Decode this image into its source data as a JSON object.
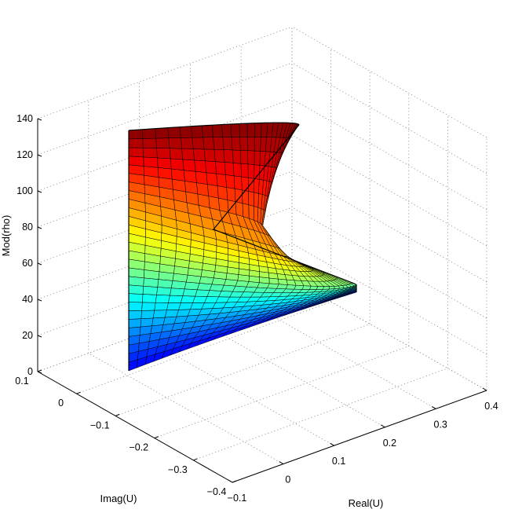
{
  "chart_data": {
    "type": "surface3d",
    "title": "",
    "xlabel": "Real(U)",
    "ylabel": "Imag(U)",
    "zlabel": "Mod(rho)",
    "xlim": [
      -0.1,
      0.4
    ],
    "ylim": [
      -0.4,
      0.1
    ],
    "zlim": [
      0,
      140
    ],
    "x_ticks": [
      "−0.1",
      "0",
      "0.1",
      "0.2",
      "0.3",
      "0.4"
    ],
    "y_ticks": [
      "−0.4",
      "−0.3",
      "−0.2",
      "−0.1",
      "0",
      "0.1"
    ],
    "z_ticks": [
      "0",
      "20",
      "40",
      "60",
      "80",
      "100",
      "120",
      "140"
    ],
    "grid": true,
    "box": false,
    "colormap": "jet",
    "mesh_rows": 28,
    "mesh_cols": 26,
    "edge_color": "#000000",
    "surface_description_points": [
      {
        "x": 0.0,
        "y": 0.1,
        "z": 0
      },
      {
        "x": 0.0,
        "y": 0.1,
        "z": 128
      },
      {
        "x": 0.25,
        "y": 0.0,
        "z": 128
      },
      {
        "x": 0.3,
        "y": -0.2,
        "z": 40
      },
      {
        "x": 0.22,
        "y": -0.05,
        "z": 75
      }
    ]
  }
}
